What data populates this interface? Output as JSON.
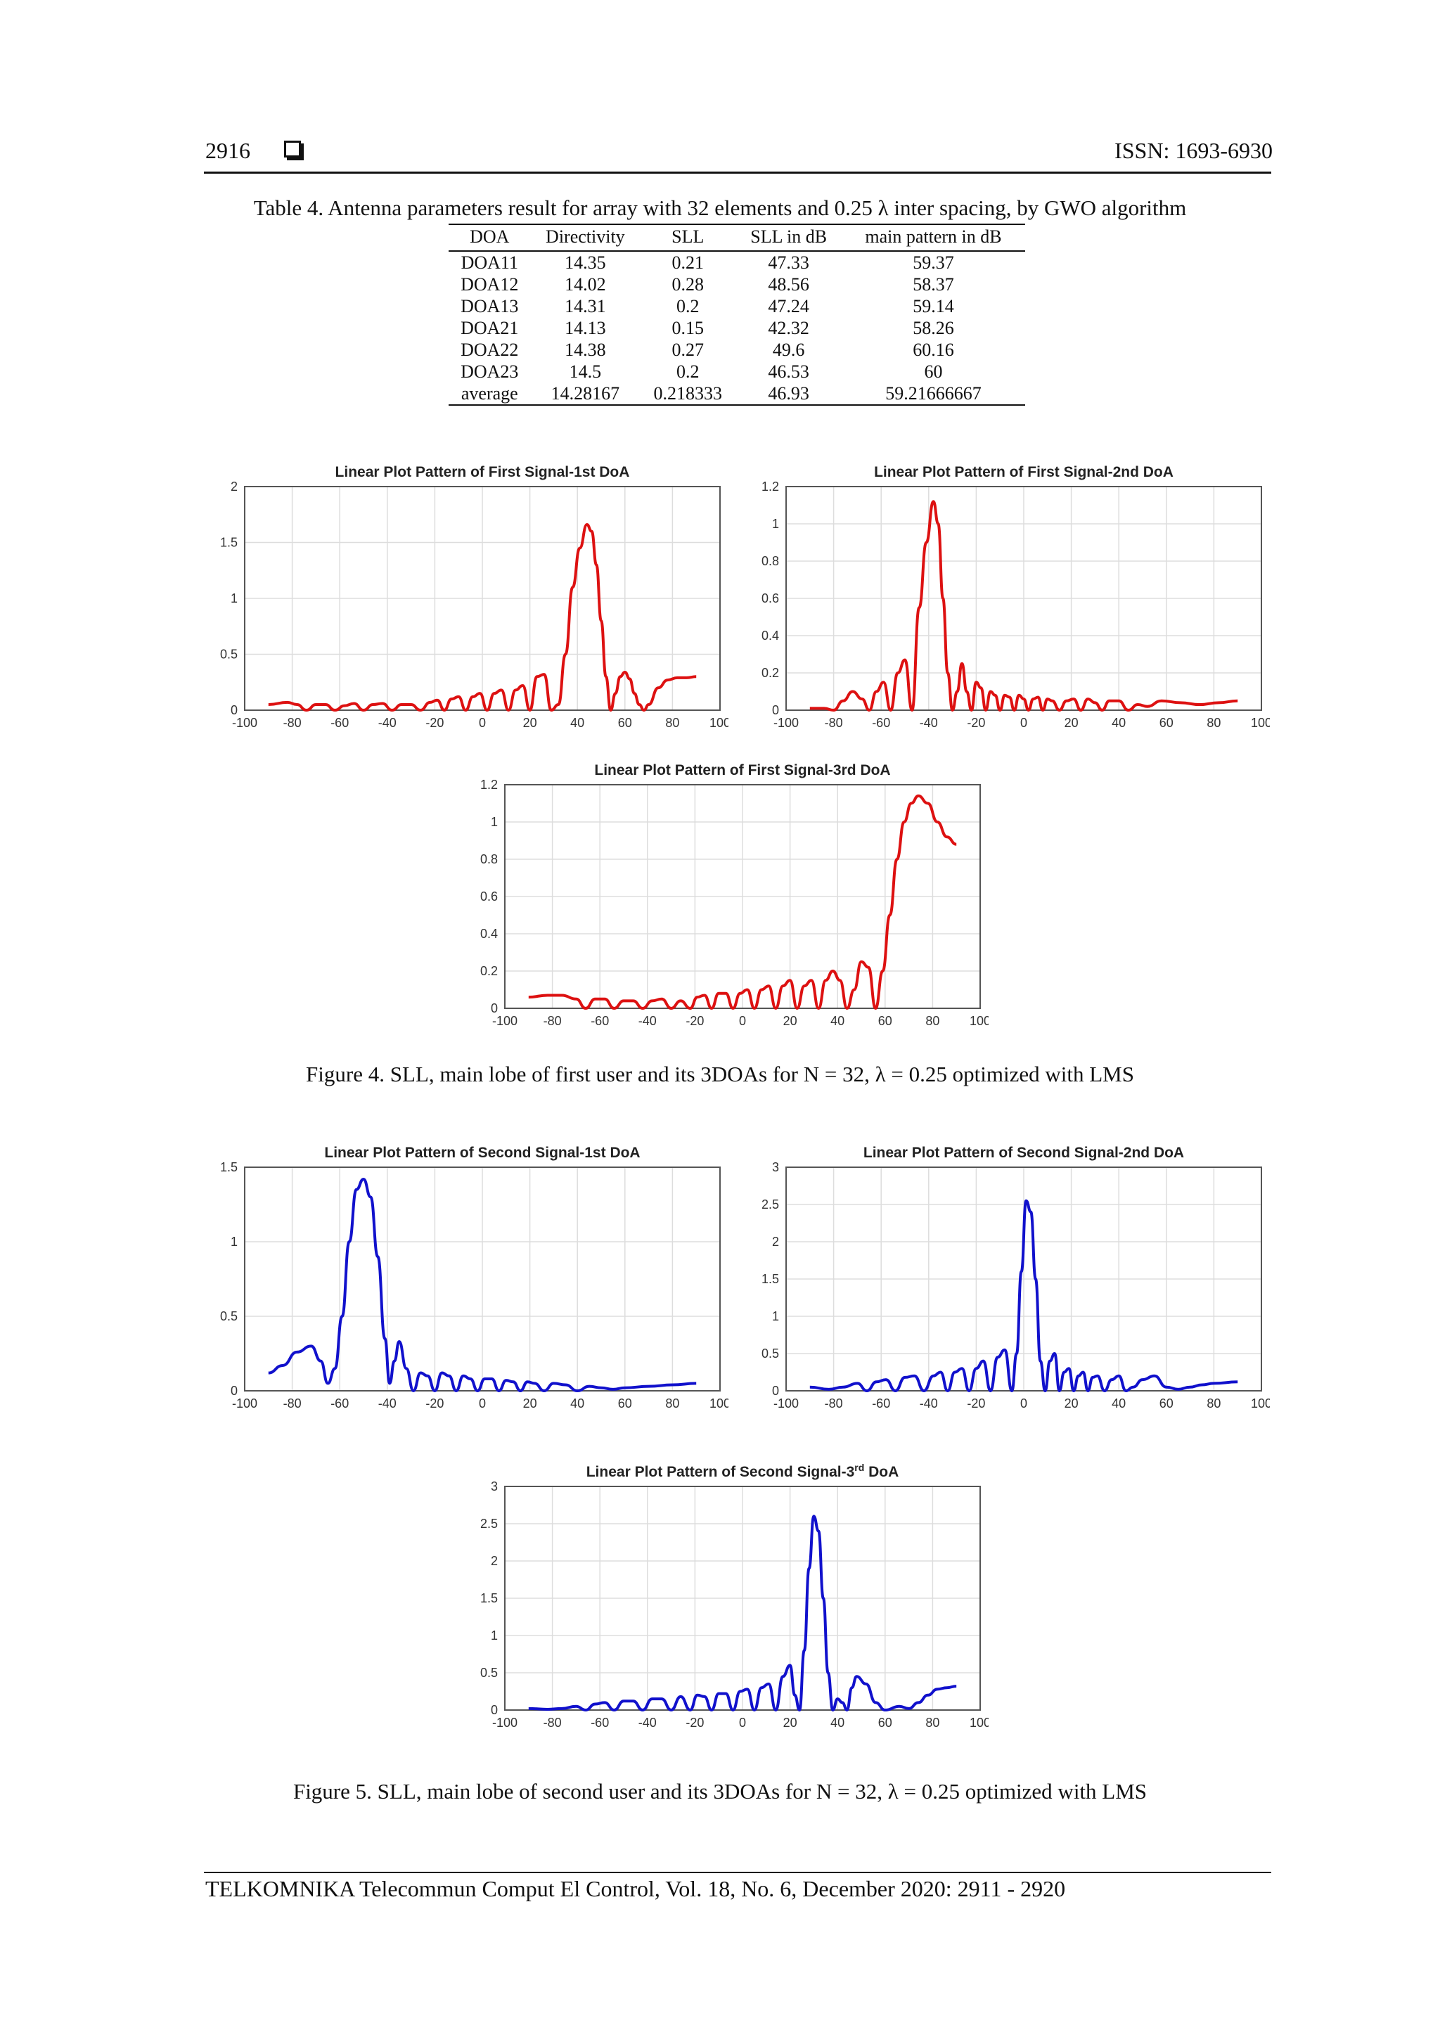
{
  "header": {
    "page_number": "2916",
    "issn": "ISSN: 1693-6930"
  },
  "table": {
    "caption": "Table 4. Antenna parameters result for array with 32 elements and 0.25 λ inter spacing, by GWO algorithm",
    "columns": [
      "DOA",
      "Directivity",
      "SLL",
      "SLL in dB",
      "main pattern in dB"
    ],
    "rows": [
      [
        "DOA11",
        "14.35",
        "0.21",
        "47.33",
        "59.37"
      ],
      [
        "DOA12",
        "14.02",
        "0.28",
        "48.56",
        "58.37"
      ],
      [
        "DOA13",
        "14.31",
        "0.2",
        "47.24",
        "59.14"
      ],
      [
        "DOA21",
        "14.13",
        "0.15",
        "42.32",
        "58.26"
      ],
      [
        "DOA22",
        "14.38",
        "0.27",
        "49.6",
        "60.16"
      ],
      [
        "DOA23",
        "14.5",
        "0.2",
        "46.53",
        "60"
      ],
      [
        "average",
        "14.28167",
        "0.218333",
        "46.93",
        "59.21666667"
      ]
    ]
  },
  "figure4": {
    "caption": "Figure 4. SLL, main lobe of first user and its 3DOAs for N = 32, λ = 0.25 optimized with LMS"
  },
  "figure5": {
    "caption": "Figure 5. SLL, main lobe of second user and its 3DOAs for N = 32, λ = 0.25 optimized with LMS"
  },
  "footer": {
    "journal": "TELKOMNIKA Telecommun Comput El Control, Vol. 18, No. 6, December 2020:  2911 - 2920"
  },
  "colors": {
    "first_user": "#dd1111",
    "second_user": "#1111cc",
    "grid": "#dddddd",
    "axis": "#555555"
  },
  "chart_data": [
    {
      "type": "line",
      "title": "Linear Plot Pattern of First Signal-1st DoA",
      "title_sup": "",
      "xlabel": "",
      "ylabel": "",
      "xlim": [
        -100,
        100
      ],
      "ylim": [
        0,
        2
      ],
      "grid": true,
      "xticks": [
        -100,
        -80,
        -60,
        -40,
        -20,
        0,
        20,
        40,
        60,
        80,
        100
      ],
      "yticks": [
        0,
        0.5,
        1,
        1.5,
        2
      ],
      "series": [
        {
          "color": "#dd1111",
          "x": [
            -90,
            -82,
            -78,
            -74,
            -70,
            -66,
            -62,
            -58,
            -54,
            -50,
            -46,
            -42,
            -38,
            -34,
            -30,
            -26,
            -22,
            -19,
            -16,
            -13,
            -10,
            -7,
            -4,
            -1,
            2,
            5,
            8,
            11,
            14,
            17,
            20,
            23,
            26,
            29,
            32,
            35,
            38,
            41,
            44,
            46,
            48,
            50,
            52,
            54,
            56,
            58,
            60,
            62,
            64,
            66,
            68,
            70,
            74,
            78,
            82,
            86,
            90
          ],
          "y": [
            0.05,
            0.07,
            0.05,
            0,
            0.05,
            0.05,
            0,
            0.04,
            0.06,
            0,
            0.05,
            0.06,
            0,
            0.05,
            0.05,
            0,
            0.07,
            0.09,
            0,
            0.1,
            0.12,
            0,
            0.12,
            0.15,
            0,
            0.15,
            0.18,
            0,
            0.18,
            0.22,
            0,
            0.3,
            0.32,
            0,
            0.05,
            0.5,
            1.1,
            1.45,
            1.66,
            1.6,
            1.3,
            0.8,
            0.3,
            0,
            0.15,
            0.3,
            0.34,
            0.28,
            0.15,
            0.05,
            0,
            0.05,
            0.2,
            0.27,
            0.29,
            0.29,
            0.3
          ]
        }
      ]
    },
    {
      "type": "line",
      "title": "Linear Plot Pattern of First Signal-2nd DoA",
      "title_sup": "",
      "xlabel": "",
      "ylabel": "",
      "xlim": [
        -100,
        100
      ],
      "ylim": [
        0,
        1.2
      ],
      "grid": true,
      "xticks": [
        -100,
        -80,
        -60,
        -40,
        -20,
        0,
        20,
        40,
        60,
        80,
        100
      ],
      "yticks": [
        0,
        0.2,
        0.4,
        0.6,
        0.8,
        1,
        1.2
      ],
      "series": [
        {
          "color": "#dd1111",
          "x": [
            -90,
            -84,
            -80,
            -76,
            -72,
            -68,
            -65,
            -62,
            -59,
            -56,
            -53,
            -50,
            -47,
            -44,
            -41,
            -38,
            -36,
            -34,
            -32,
            -30,
            -28,
            -26,
            -24,
            -22,
            -20,
            -18,
            -16,
            -14,
            -12,
            -10,
            -8,
            -6,
            -4,
            -2,
            0,
            2,
            4,
            6,
            8,
            10,
            12,
            15,
            18,
            21,
            24,
            27,
            30,
            33,
            36,
            40,
            44,
            48,
            52,
            58,
            66,
            74,
            82,
            90
          ],
          "y": [
            0.01,
            0.01,
            0,
            0.05,
            0.1,
            0.06,
            0,
            0.1,
            0.15,
            0,
            0.2,
            0.27,
            0,
            0.55,
            0.9,
            1.12,
            1.0,
            0.6,
            0.2,
            0,
            0.1,
            0.25,
            0.1,
            0,
            0.15,
            0.12,
            0,
            0.1,
            0.08,
            0,
            0.08,
            0.07,
            0,
            0.08,
            0.06,
            0,
            0.06,
            0.07,
            0,
            0.06,
            0.05,
            0,
            0.05,
            0.06,
            0,
            0.06,
            0.04,
            0,
            0.05,
            0.05,
            0,
            0.03,
            0.02,
            0.05,
            0.04,
            0.03,
            0.04,
            0.05
          ]
        }
      ]
    },
    {
      "type": "line",
      "title": "Linear Plot Pattern of First Signal-3rd DoA",
      "title_sup": "",
      "xlabel": "",
      "ylabel": "",
      "xlim": [
        -100,
        100
      ],
      "ylim": [
        0,
        1.2
      ],
      "grid": true,
      "xticks": [
        -100,
        -80,
        -60,
        -40,
        -20,
        0,
        20,
        40,
        60,
        80,
        100
      ],
      "yticks": [
        0,
        0.2,
        0.4,
        0.6,
        0.8,
        1,
        1.2
      ],
      "series": [
        {
          "color": "#dd1111",
          "x": [
            -90,
            -82,
            -76,
            -70,
            -66,
            -62,
            -58,
            -54,
            -50,
            -46,
            -42,
            -38,
            -34,
            -30,
            -26,
            -22,
            -19,
            -16,
            -13,
            -10,
            -7,
            -4,
            -1,
            2,
            5,
            8,
            11,
            14,
            17,
            20,
            23,
            26,
            29,
            32,
            35,
            38,
            41,
            44,
            47,
            50,
            53,
            56,
            59,
            62,
            65,
            68,
            71,
            74,
            78,
            82,
            86,
            90
          ],
          "y": [
            0.06,
            0.07,
            0.07,
            0.05,
            0,
            0.05,
            0.05,
            0,
            0.04,
            0.04,
            0,
            0.04,
            0.05,
            0,
            0.04,
            0,
            0.06,
            0.07,
            0,
            0.08,
            0.08,
            0,
            0.08,
            0.1,
            0,
            0.1,
            0.12,
            0,
            0.12,
            0.15,
            0,
            0.12,
            0.15,
            0,
            0.15,
            0.2,
            0.15,
            0,
            0.1,
            0.25,
            0.22,
            0,
            0.2,
            0.5,
            0.8,
            1.0,
            1.1,
            1.14,
            1.1,
            1.0,
            0.92,
            0.88
          ]
        }
      ]
    },
    {
      "type": "line",
      "title": "Linear Plot Pattern of Second Signal-1st DoA",
      "title_sup": "",
      "xlabel": "",
      "ylabel": "",
      "xlim": [
        -100,
        100
      ],
      "ylim": [
        0,
        1.5
      ],
      "grid": true,
      "xticks": [
        -100,
        -80,
        -60,
        -40,
        -20,
        0,
        20,
        40,
        60,
        80,
        100
      ],
      "yticks": [
        0,
        0.5,
        1,
        1.5
      ],
      "series": [
        {
          "color": "#1111cc",
          "x": [
            -90,
            -84,
            -78,
            -72,
            -68,
            -65,
            -62,
            -59,
            -56,
            -53,
            -50,
            -47,
            -44,
            -41,
            -39,
            -37,
            -35,
            -32,
            -29,
            -26,
            -23,
            -20,
            -17,
            -14,
            -11,
            -8,
            -5,
            -2,
            1,
            4,
            7,
            10,
            13,
            16,
            19,
            22,
            26,
            30,
            35,
            40,
            45,
            50,
            55,
            60,
            70,
            80,
            90
          ],
          "y": [
            0.12,
            0.17,
            0.26,
            0.3,
            0.2,
            0.05,
            0.15,
            0.5,
            1.0,
            1.35,
            1.42,
            1.3,
            0.9,
            0.35,
            0.05,
            0.2,
            0.33,
            0.15,
            0,
            0.12,
            0.1,
            0,
            0.12,
            0.1,
            0,
            0.1,
            0.08,
            0,
            0.08,
            0.08,
            0,
            0.07,
            0.06,
            0,
            0.06,
            0.05,
            0,
            0.05,
            0.04,
            0,
            0.03,
            0.02,
            0.01,
            0.02,
            0.03,
            0.04,
            0.05
          ]
        }
      ]
    },
    {
      "type": "line",
      "title": "Linear Plot Pattern of Second Signal-2nd DoA",
      "title_sup": "",
      "xlabel": "",
      "ylabel": "",
      "xlim": [
        -100,
        100
      ],
      "ylim": [
        0,
        3
      ],
      "grid": true,
      "xticks": [
        -100,
        -80,
        -60,
        -40,
        -20,
        0,
        20,
        40,
        60,
        80,
        100
      ],
      "yticks": [
        0,
        0.5,
        1,
        1.5,
        2,
        2.5,
        3
      ],
      "series": [
        {
          "color": "#1111cc",
          "x": [
            -90,
            -82,
            -76,
            -70,
            -66,
            -62,
            -58,
            -54,
            -50,
            -46,
            -42,
            -38,
            -35,
            -32,
            -29,
            -26,
            -23,
            -20,
            -17,
            -14,
            -11,
            -8,
            -5,
            -3,
            -1,
            1,
            3,
            5,
            7,
            9,
            11,
            13,
            15,
            17,
            19,
            21,
            23,
            25,
            27,
            29,
            31,
            34,
            37,
            40,
            43,
            46,
            50,
            55,
            60,
            65,
            70,
            75,
            80,
            90
          ],
          "y": [
            0.05,
            0.02,
            0.05,
            0.1,
            0,
            0.12,
            0.15,
            0,
            0.18,
            0.2,
            0,
            0.2,
            0.25,
            0,
            0.25,
            0.3,
            0,
            0.3,
            0.4,
            0,
            0.45,
            0.55,
            0,
            0.5,
            1.6,
            2.55,
            2.4,
            1.5,
            0.4,
            0,
            0.4,
            0.5,
            0,
            0.25,
            0.3,
            0,
            0.2,
            0.25,
            0,
            0.18,
            0.2,
            0,
            0.15,
            0.2,
            0,
            0.05,
            0.15,
            0.2,
            0.05,
            0.02,
            0.05,
            0.08,
            0.1,
            0.12
          ]
        }
      ]
    },
    {
      "type": "line",
      "title": "Linear Plot Pattern of Second Signal-3",
      "title_sup": "rd",
      "title_tail": " DoA",
      "xlabel": "",
      "ylabel": "",
      "xlim": [
        -100,
        100
      ],
      "ylim": [
        0,
        3
      ],
      "grid": true,
      "xticks": [
        -100,
        -80,
        -60,
        -40,
        -20,
        0,
        20,
        40,
        60,
        80,
        100
      ],
      "yticks": [
        0,
        0.5,
        1,
        1.5,
        2,
        2.5,
        3
      ],
      "series": [
        {
          "color": "#1111cc",
          "x": [
            -90,
            -82,
            -76,
            -70,
            -66,
            -62,
            -58,
            -54,
            -50,
            -46,
            -42,
            -38,
            -34,
            -30,
            -26,
            -22,
            -19,
            -16,
            -13,
            -10,
            -7,
            -4,
            -1,
            2,
            5,
            8,
            11,
            14,
            17,
            20,
            22,
            24,
            26,
            28,
            30,
            32,
            34,
            36,
            38,
            40,
            42,
            44,
            46,
            48,
            52,
            56,
            60,
            66,
            70,
            74,
            78,
            82,
            86,
            90
          ],
          "y": [
            0.02,
            0.01,
            0.02,
            0.05,
            0,
            0.08,
            0.1,
            0,
            0.12,
            0.12,
            0,
            0.15,
            0.15,
            0,
            0.18,
            0,
            0.2,
            0.18,
            0,
            0.22,
            0.22,
            0,
            0.25,
            0.28,
            0,
            0.3,
            0.35,
            0,
            0.45,
            0.6,
            0.2,
            0,
            0.8,
            1.9,
            2.6,
            2.4,
            1.5,
            0.5,
            0,
            0.15,
            0.1,
            0,
            0.3,
            0.45,
            0.35,
            0.1,
            0,
            0.05,
            0.02,
            0.1,
            0.2,
            0.28,
            0.3,
            0.32
          ]
        }
      ]
    }
  ]
}
